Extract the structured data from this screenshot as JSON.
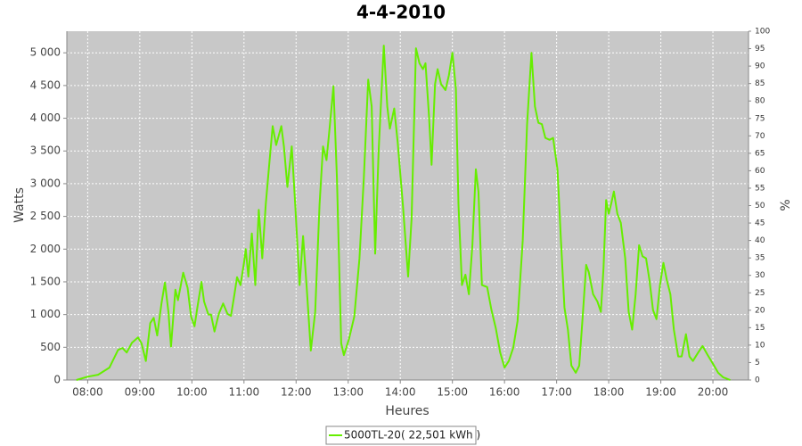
{
  "chart_data": {
    "type": "line",
    "title": "4-4-2010",
    "xlabel": "Heures",
    "ylabel": "Watts",
    "y2label": "%",
    "x": [
      "07:47",
      "08:00",
      "08:12",
      "08:25",
      "08:35",
      "08:40",
      "08:45",
      "08:51",
      "08:58",
      "09:02",
      "09:07",
      "09:12",
      "09:16",
      "09:20",
      "09:25",
      "09:29",
      "09:33",
      "09:36",
      "09:41",
      "09:44",
      "09:50",
      "09:55",
      "09:59",
      "10:03",
      "10:07",
      "10:11",
      "10:14",
      "10:19",
      "10:22",
      "10:26",
      "10:31",
      "10:36",
      "10:41",
      "10:45",
      "10:49",
      "10:52",
      "10:56",
      "11:00",
      "11:02",
      "11:05",
      "11:09",
      "11:13",
      "11:17",
      "11:21",
      "11:25",
      "11:29",
      "11:33",
      "11:37",
      "11:43",
      "11:46",
      "11:50",
      "11:55",
      "11:59",
      "12:04",
      "12:08",
      "12:12",
      "12:17",
      "12:22",
      "12:27",
      "12:31",
      "12:35",
      "12:39",
      "12:43",
      "12:47",
      "12:52",
      "12:55",
      "13:01",
      "13:07",
      "13:13",
      "13:18",
      "13:23",
      "13:27",
      "13:31",
      "13:35",
      "13:41",
      "13:45",
      "13:48",
      "13:53",
      "13:57",
      "14:03",
      "14:09",
      "14:13",
      "14:18",
      "14:22",
      "14:26",
      "14:29",
      "14:33",
      "14:36",
      "14:40",
      "14:43",
      "14:47",
      "14:52",
      "14:56",
      "15:00",
      "15:04",
      "15:07",
      "15:11",
      "15:15",
      "15:19",
      "15:23",
      "15:27",
      "15:30",
      "15:34",
      "15:40",
      "15:45",
      "15:50",
      "15:55",
      "16:00",
      "16:05",
      "16:10",
      "16:15",
      "16:21",
      "16:26",
      "16:31",
      "16:35",
      "16:39",
      "16:43",
      "16:47",
      "16:52",
      "16:56",
      "17:01",
      "17:05",
      "17:09",
      "17:13",
      "17:17",
      "17:22",
      "17:26",
      "17:30",
      "17:34",
      "17:37",
      "17:42",
      "17:47",
      "17:51",
      "17:54",
      "17:57",
      "18:00",
      "18:03",
      "18:06",
      "18:10",
      "18:14",
      "18:19",
      "18:23",
      "18:27",
      "18:31",
      "18:35",
      "18:39",
      "18:43",
      "18:47",
      "18:51",
      "18:55",
      "18:59",
      "19:03",
      "19:07",
      "19:11",
      "19:15",
      "19:20",
      "19:24",
      "19:29",
      "19:33",
      "19:37",
      "19:43",
      "19:48",
      "19:54",
      "20:00",
      "20:06",
      "20:12",
      "20:20"
    ],
    "series": [
      {
        "name": "5000TL-20( 22,501 kWh )",
        "color": "#66ee00",
        "values": [
          0,
          50,
          80,
          190,
          460,
          490,
          420,
          570,
          650,
          560,
          290,
          870,
          950,
          680,
          1170,
          1490,
          1040,
          510,
          1380,
          1220,
          1640,
          1410,
          970,
          820,
          1170,
          1500,
          1200,
          1000,
          1000,
          740,
          1010,
          1170,
          1010,
          980,
          1310,
          1570,
          1450,
          1790,
          2000,
          1580,
          2240,
          1450,
          2600,
          1860,
          2680,
          3290,
          3880,
          3590,
          3880,
          3570,
          2950,
          3570,
          2680,
          1450,
          2200,
          1450,
          450,
          1040,
          2680,
          3570,
          3360,
          3910,
          4490,
          3090,
          560,
          380,
          630,
          970,
          1860,
          3090,
          4590,
          4180,
          1930,
          3500,
          5110,
          4180,
          3840,
          4150,
          3630,
          2680,
          1580,
          2470,
          5070,
          4840,
          4750,
          4840,
          4040,
          3290,
          4520,
          4750,
          4520,
          4430,
          4660,
          5000,
          4450,
          2680,
          1450,
          1610,
          1310,
          2060,
          3220,
          2880,
          1450,
          1420,
          1070,
          790,
          420,
          190,
          290,
          490,
          900,
          2130,
          3910,
          5000,
          4180,
          3930,
          3910,
          3700,
          3670,
          3700,
          3220,
          2130,
          1110,
          770,
          220,
          110,
          220,
          970,
          1760,
          1650,
          1310,
          1200,
          1040,
          1720,
          2750,
          2540,
          2700,
          2880,
          2540,
          2400,
          1860,
          1040,
          770,
          1310,
          2060,
          1890,
          1860,
          1520,
          1070,
          930,
          1450,
          1790,
          1520,
          1310,
          770,
          360,
          360,
          700,
          360,
          290,
          420,
          520,
          380,
          250,
          110,
          40,
          0
        ]
      }
    ],
    "xlim": [
      "07:36",
      "20:41"
    ],
    "xticks": [
      "08:00",
      "09:00",
      "10:00",
      "11:00",
      "12:00",
      "13:00",
      "14:00",
      "15:00",
      "16:00",
      "17:00",
      "18:00",
      "19:00",
      "20:00"
    ],
    "ylim": [
      0,
      5330
    ],
    "yticks": [
      0,
      500,
      {
        "value": 1000,
        "label": "1 000"
      },
      {
        "value": 1500,
        "label": "1 500"
      },
      {
        "value": 2000,
        "label": "2 000"
      },
      {
        "value": 2500,
        "label": "2 500"
      },
      {
        "value": 3000,
        "label": "3 000"
      },
      {
        "value": 3500,
        "label": "3 500"
      },
      {
        "value": 4000,
        "label": "4 000"
      },
      {
        "value": 4500,
        "label": "4 500"
      },
      {
        "value": 5000,
        "label": "5 000"
      }
    ],
    "y2lim": [
      0,
      100
    ],
    "y2ticks": [
      0,
      5,
      10,
      15,
      20,
      25,
      30,
      35,
      40,
      45,
      50,
      55,
      60,
      65,
      70,
      75,
      80,
      85,
      90,
      95,
      100
    ],
    "grid": true,
    "legend": "bottom"
  }
}
